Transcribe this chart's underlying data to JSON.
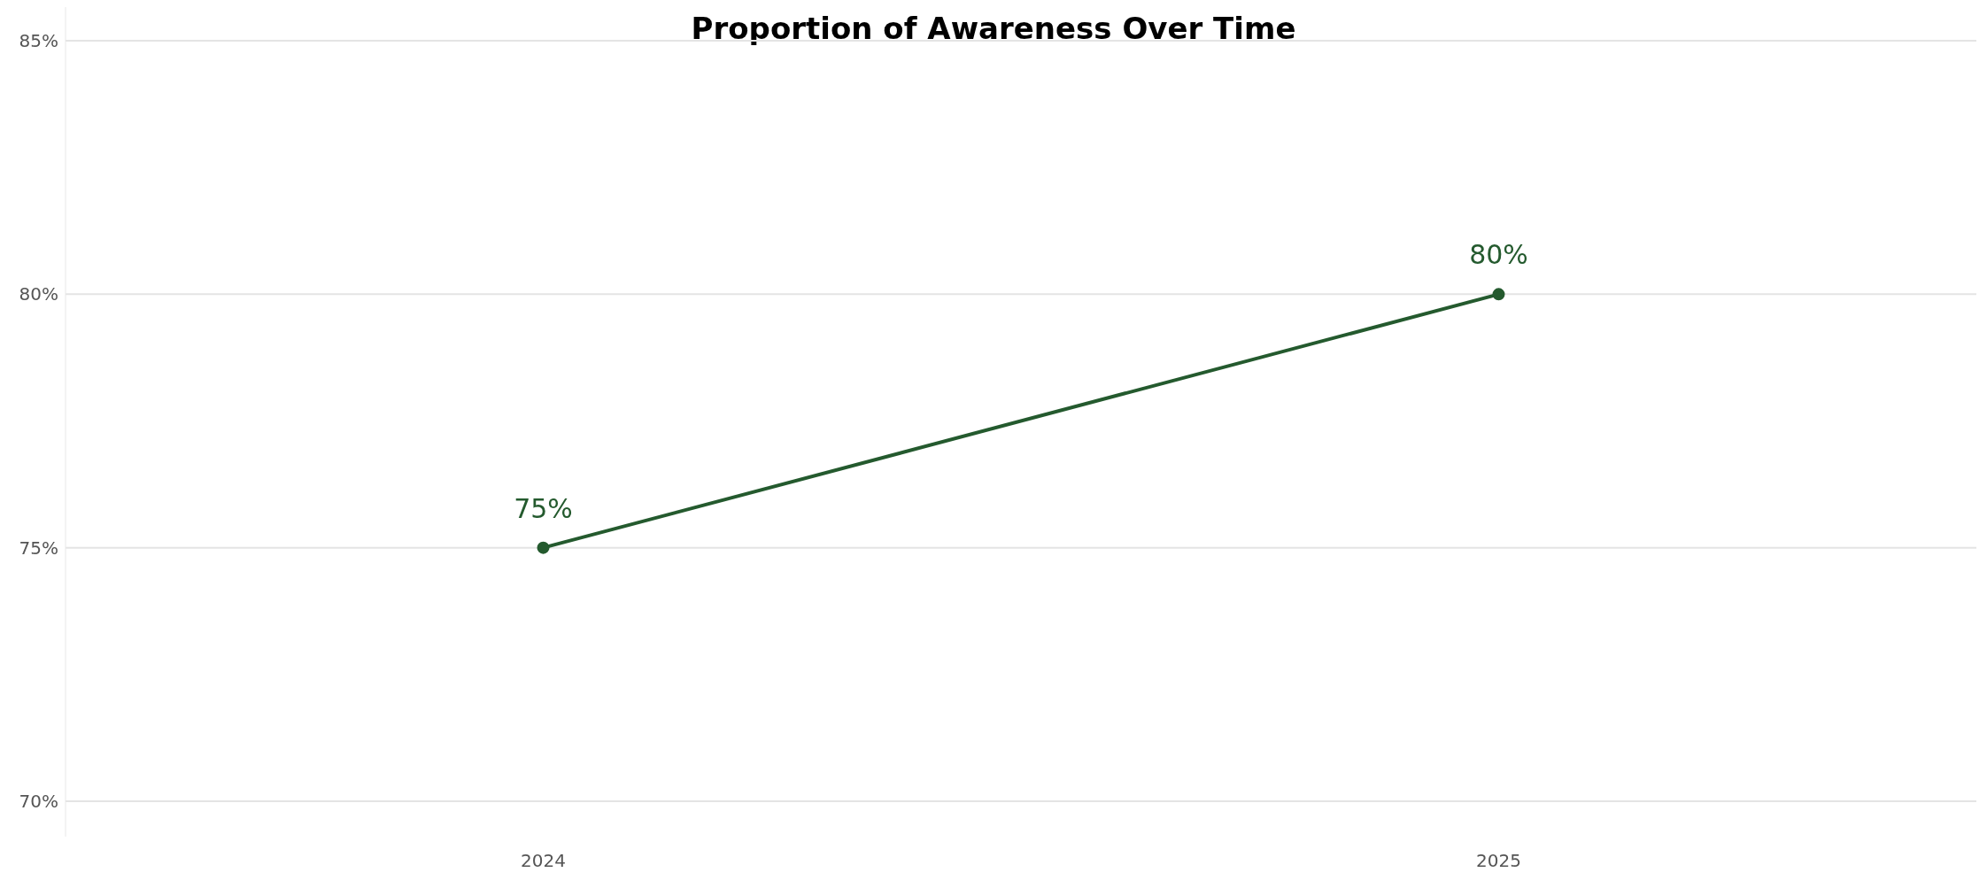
{
  "chart_data": {
    "type": "line",
    "title": "Proportion of Awareness Over Time",
    "categories": [
      "2024",
      "2025"
    ],
    "series": [
      {
        "color": "#245a2e",
        "values": [
          75,
          80
        ],
        "value_labels": [
          "75%",
          "80%"
        ]
      }
    ],
    "ylim": [
      69.3,
      85.7
    ],
    "yticks": [
      {
        "value": 70,
        "label": "70%"
      },
      {
        "value": 75,
        "label": "75%"
      },
      {
        "value": 80,
        "label": "80%"
      },
      {
        "value": 85,
        "label": "85%"
      }
    ],
    "grid": "y",
    "marker": "circle",
    "line_style": "solid",
    "legend": false
  }
}
